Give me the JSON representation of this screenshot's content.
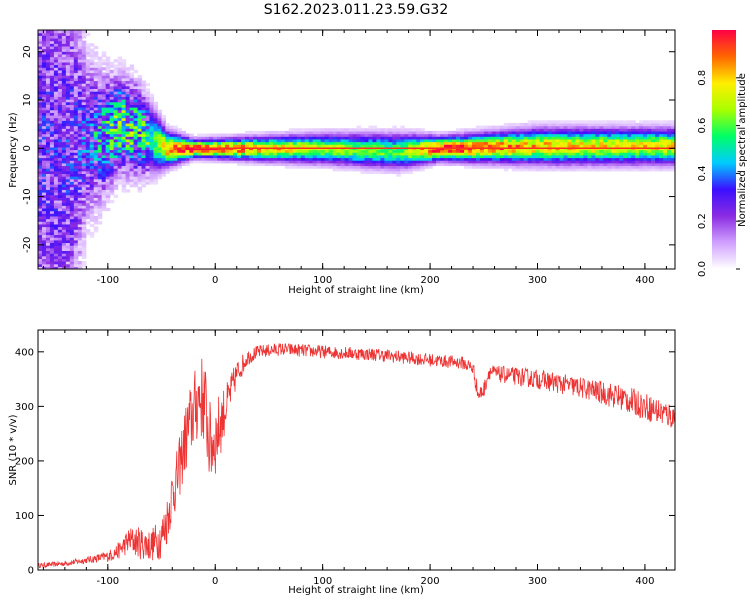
{
  "title": "S162.2023.011.23.59.G32",
  "chart_data": [
    {
      "type": "heatmap",
      "xlabel": "Height of straight line (km)",
      "ylabel": "Frequency (Hz)",
      "xlim": [
        -165,
        428
      ],
      "ylim": [
        -25,
        24.5
      ],
      "xticks": [
        -100,
        0,
        100,
        200,
        300,
        400
      ],
      "yticks": [
        -20,
        -10,
        0,
        10,
        20
      ],
      "colorbar": {
        "label": "Normalized spectral amplitude",
        "range": [
          0,
          1
        ],
        "ticks": [
          "0.0",
          "0.2",
          "0.4",
          "0.6",
          "0.8"
        ],
        "tick_values": [
          0,
          0.2,
          0.4,
          0.6,
          0.8
        ],
        "colors": [
          "#ffffff",
          "#d0a0ff",
          "#8a2be2",
          "#3b10ff",
          "#00ccff",
          "#00ff66",
          "#aaff00",
          "#ffee00",
          "#ff6600",
          "#ff0044"
        ]
      },
      "ridge": [
        {
          "x": -140,
          "f_center": 0,
          "width": 40,
          "peak_amp": 0.25
        },
        {
          "x": -120,
          "f_center": 2,
          "width": 14,
          "peak_amp": 0.3
        },
        {
          "x": -100,
          "f_center": 3,
          "width": 10,
          "peak_amp": 0.45
        },
        {
          "x": -90,
          "f_center": 5,
          "width": 8,
          "peak_amp": 0.55
        },
        {
          "x": -75,
          "f_center": 4,
          "width": 8,
          "peak_amp": 0.5
        },
        {
          "x": -60,
          "f_center": 2,
          "width": 6,
          "peak_amp": 0.5
        },
        {
          "x": -45,
          "f_center": 0,
          "width": 3,
          "peak_amp": 0.85
        },
        {
          "x": -20,
          "f_center": 0,
          "width": 1.5,
          "peak_amp": 1.0
        },
        {
          "x": 100,
          "f_center": 0,
          "width": 2.5,
          "peak_amp": 0.7
        },
        {
          "x": 170,
          "f_center": -0.5,
          "width": 3,
          "peak_amp": 0.6
        },
        {
          "x": 210,
          "f_center": 0,
          "width": 2,
          "peak_amp": 1.0
        },
        {
          "x": 300,
          "f_center": 0.5,
          "width": 3,
          "peak_amp": 0.8
        },
        {
          "x": 428,
          "f_center": 0.5,
          "width": 3,
          "peak_amp": 0.75
        }
      ]
    },
    {
      "type": "line",
      "xlabel": "Height of straight line (km)",
      "ylabel": "SNR (10 * v/v)",
      "xlim": [
        -165,
        428
      ],
      "ylim": [
        0,
        440
      ],
      "xticks": [
        -100,
        0,
        100,
        200,
        300,
        400
      ],
      "yticks": [
        0,
        100,
        200,
        300,
        400
      ],
      "color": "#ee3333",
      "series": [
        {
          "x": [
            -165,
            -140,
            -120,
            -100,
            -90,
            -80,
            -70,
            -60,
            -50,
            -45,
            -40,
            -35,
            -30,
            -25,
            -20,
            -15,
            -10,
            -5,
            0,
            5,
            10,
            20,
            30,
            40,
            60,
            100,
            150,
            200,
            230,
            240,
            245,
            250,
            255,
            260,
            300,
            350,
            380,
            400,
            428
          ],
          "y": [
            8,
            12,
            18,
            25,
            35,
            55,
            50,
            45,
            60,
            90,
            140,
            170,
            220,
            260,
            290,
            320,
            310,
            230,
            240,
            270,
            300,
            360,
            390,
            400,
            405,
            400,
            395,
            385,
            380,
            370,
            320,
            330,
            365,
            360,
            350,
            330,
            315,
            300,
            280
          ],
          "noise": [
            4,
            5,
            6,
            10,
            15,
            25,
            30,
            30,
            40,
            45,
            50,
            55,
            60,
            70,
            70,
            80,
            80,
            80,
            70,
            60,
            40,
            25,
            15,
            12,
            12,
            12,
            12,
            12,
            12,
            15,
            15,
            15,
            15,
            15,
            18,
            20,
            25,
            25,
            25
          ]
        }
      ]
    }
  ]
}
